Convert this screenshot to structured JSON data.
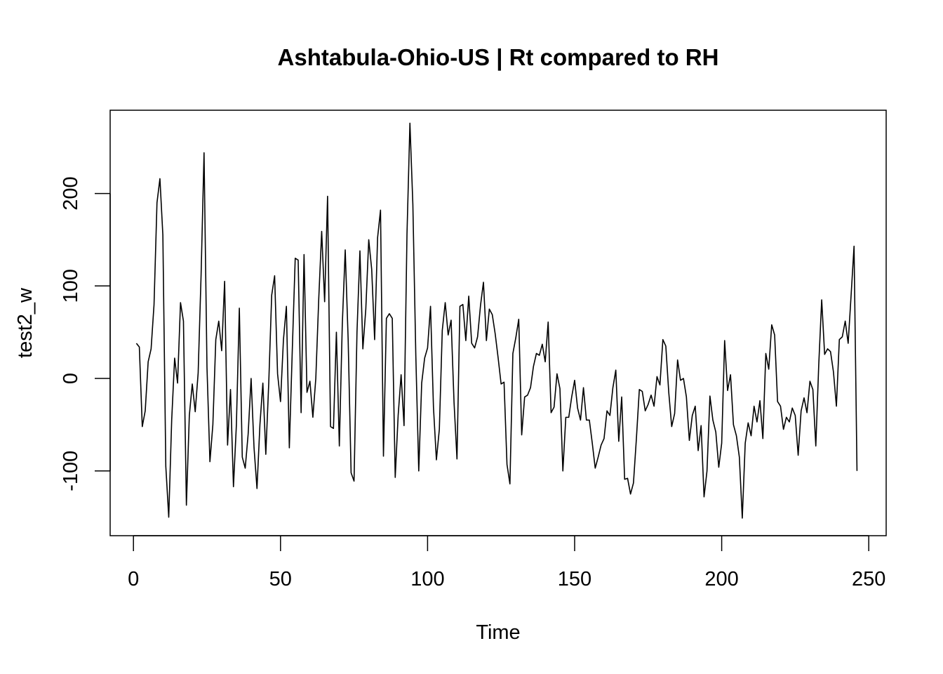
{
  "chart_data": {
    "type": "line",
    "title": "Ashtabula-Ohio-US | Rt compared to RH",
    "xlabel": "Time",
    "ylabel": "test2_w",
    "xlim": [
      -7.92,
      255.92
    ],
    "ylim": [
      -170,
      290
    ],
    "xticks": [
      0,
      50,
      100,
      150,
      200,
      250
    ],
    "yticks": [
      -100,
      0,
      100,
      200
    ],
    "grid": false,
    "legend": "none",
    "line_color": "#000000",
    "series": [
      {
        "x_start": 1,
        "values": [
          38,
          34,
          -52,
          -35,
          18,
          32,
          80,
          190,
          216,
          155,
          -95,
          -150,
          -45,
          22,
          -5,
          82,
          62,
          -137,
          -40,
          -6,
          -36,
          6,
          112,
          244,
          12,
          -90,
          -50,
          42,
          62,
          30,
          105,
          -72,
          -12,
          -117,
          -50,
          76,
          -85,
          -97,
          -60,
          0,
          -75,
          -119,
          -50,
          -5,
          -82,
          -5,
          90,
          111,
          5,
          -25,
          42,
          78,
          -75,
          30,
          130,
          128,
          -37,
          134,
          -15,
          -3,
          -42,
          0,
          86,
          159,
          83,
          197,
          -52,
          -54,
          50,
          -73,
          58,
          139,
          42,
          -102,
          -111,
          50,
          138,
          32,
          75,
          150,
          118,
          42,
          152,
          182,
          -84,
          65,
          70,
          65,
          -107,
          -40,
          4,
          -51,
          156,
          276,
          188,
          25,
          -100,
          -5,
          22,
          33,
          78,
          -31,
          -88,
          -55,
          52,
          82,
          47,
          63,
          -26,
          -87,
          78,
          80,
          41,
          89,
          38,
          33,
          45,
          79,
          104,
          41,
          75,
          69,
          48,
          22,
          -6,
          -4,
          -93,
          -114,
          27,
          44,
          64,
          -61,
          -20,
          -18,
          -10,
          13,
          27,
          25,
          37,
          18,
          61,
          -37,
          -31,
          5,
          -11,
          -100,
          -42,
          -42,
          -20,
          -2,
          -32,
          -45,
          -10,
          -45,
          -45,
          -70,
          -97,
          -85,
          -72,
          -65,
          -35,
          -40,
          -10,
          9,
          -68,
          -20,
          -109,
          -108,
          -125,
          -113,
          -65,
          -12,
          -14,
          -35,
          -28,
          -18,
          -30,
          2,
          -7,
          42,
          35,
          -15,
          -52,
          -38,
          20,
          -2,
          0,
          -20,
          -67,
          -40,
          -30,
          -78,
          -51,
          -128,
          -100,
          -19,
          -45,
          -58,
          -96,
          -70,
          41,
          -13,
          4,
          -50,
          -62,
          -85,
          -151,
          -70,
          -48,
          -62,
          -30,
          -47,
          -24,
          -65,
          27,
          10,
          58,
          47,
          -25,
          -30,
          -55,
          -42,
          -47,
          -32,
          -40,
          -83,
          -35,
          -21,
          -37,
          -3,
          -12,
          -73,
          15,
          85,
          26,
          32,
          29,
          7,
          -30,
          42,
          45,
          62,
          38,
          90,
          143,
          -100
        ]
      }
    ]
  }
}
